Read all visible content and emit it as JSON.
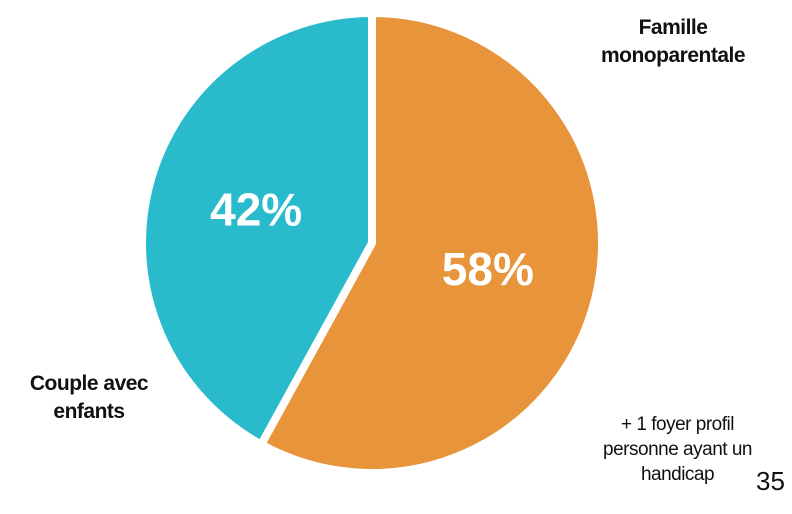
{
  "chart_data": {
    "type": "pie",
    "categories": [
      "Famille monoparentale",
      "Couple avec enfants"
    ],
    "values": [
      58,
      42
    ],
    "value_labels": [
      "58%",
      "42%"
    ],
    "colors": [
      "#e8943a",
      "#29bbcb"
    ]
  },
  "note": "+ 1 foyer profil personne ayant un handicap",
  "page_number": "35"
}
